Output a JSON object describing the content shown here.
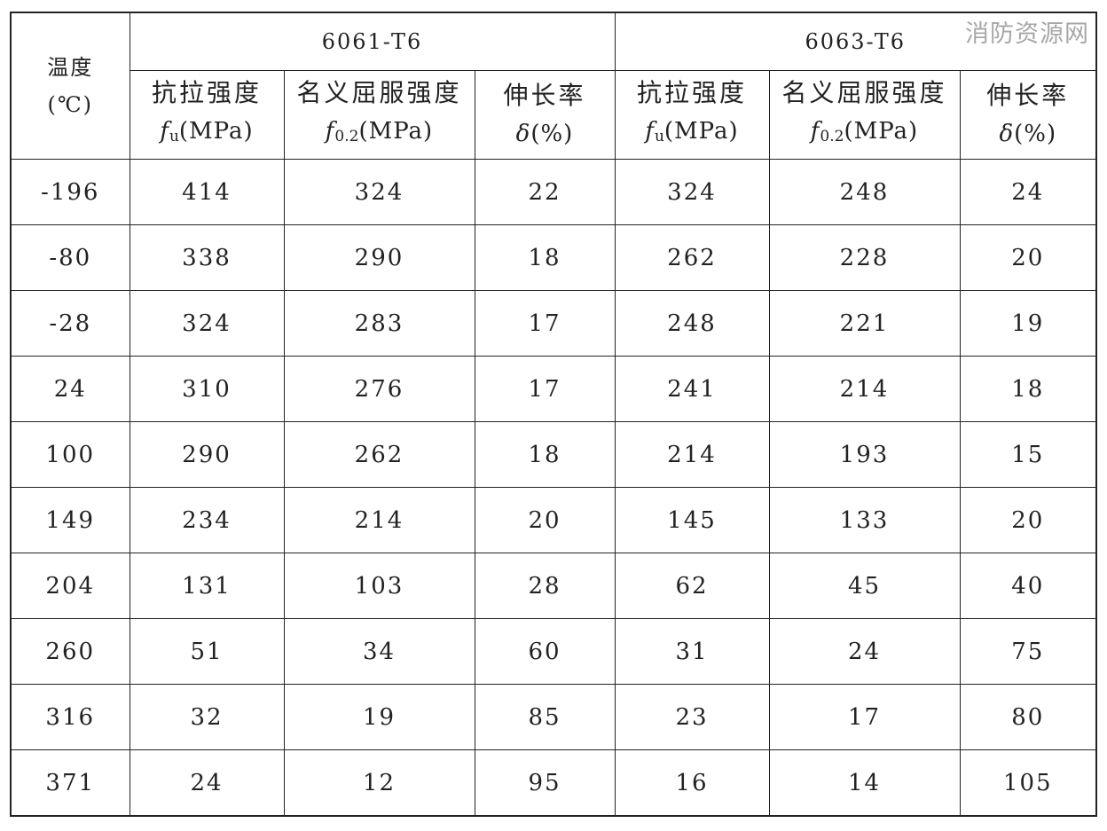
{
  "watermark": "消防资源网",
  "table": {
    "temp_header": {
      "line1": "温度",
      "line2": "(℃)"
    },
    "groups": [
      "6061-T6",
      "6063-T6"
    ],
    "subheaders": [
      {
        "label": "抗拉强度",
        "sym": "f",
        "sub": "u",
        "unit": "(MPa)"
      },
      {
        "label": "名义屈服强度",
        "sym": "f",
        "sub": "0.2",
        "unit": "(MPa)"
      },
      {
        "label": "伸长率",
        "sym": "δ",
        "sub": "",
        "unit": "(%)"
      },
      {
        "label": "抗拉强度",
        "sym": "f",
        "sub": "u",
        "unit": "(MPa)"
      },
      {
        "label": "名义屈服强度",
        "sym": "f",
        "sub": "0.2",
        "unit": "(MPa)"
      },
      {
        "label": "伸长率",
        "sym": "δ",
        "sub": "",
        "unit": "(%)"
      }
    ],
    "rows": [
      [
        "-196",
        "414",
        "324",
        "22",
        "324",
        "248",
        "24"
      ],
      [
        "-80",
        "338",
        "290",
        "18",
        "262",
        "228",
        "20"
      ],
      [
        "-28",
        "324",
        "283",
        "17",
        "248",
        "221",
        "19"
      ],
      [
        "24",
        "310",
        "276",
        "17",
        "241",
        "214",
        "18"
      ],
      [
        "100",
        "290",
        "262",
        "18",
        "214",
        "193",
        "15"
      ],
      [
        "149",
        "234",
        "214",
        "20",
        "145",
        "133",
        "20"
      ],
      [
        "204",
        "131",
        "103",
        "28",
        "62",
        "45",
        "40"
      ],
      [
        "260",
        "51",
        "34",
        "60",
        "31",
        "24",
        "75"
      ],
      [
        "316",
        "32",
        "19",
        "85",
        "23",
        "17",
        "80"
      ],
      [
        "371",
        "24",
        "12",
        "95",
        "16",
        "14",
        "105"
      ]
    ]
  }
}
